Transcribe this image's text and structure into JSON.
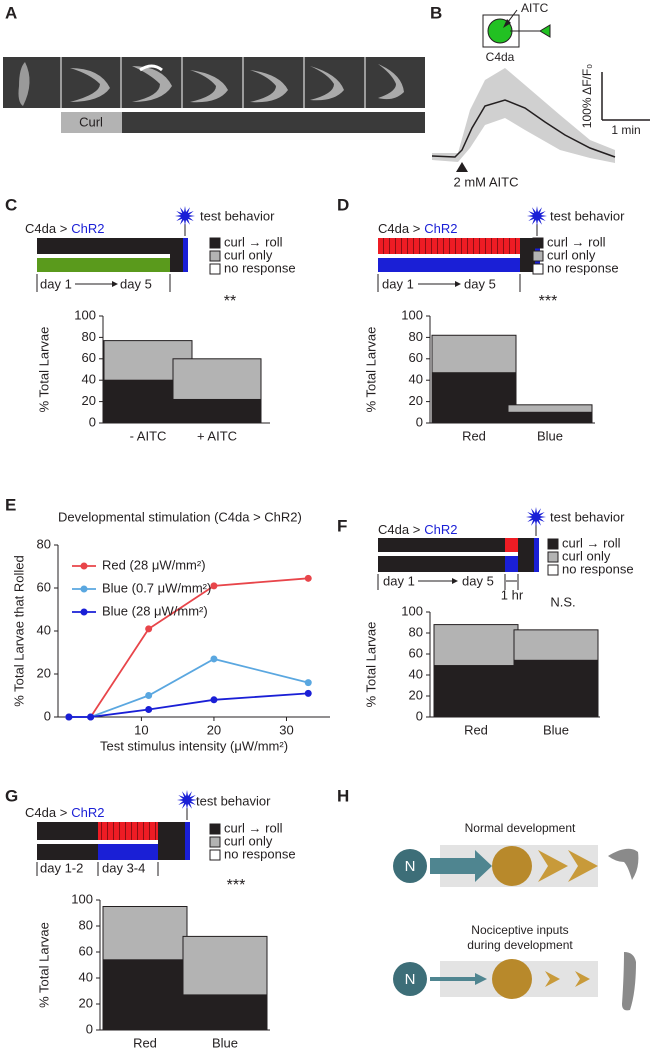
{
  "panels": {
    "A": {
      "label": "A",
      "curl": "Curl"
    },
    "B": {
      "label": "B",
      "stimulus": "AITC",
      "neuron": "C4da",
      "scale_y": "100% ΔF/F₀",
      "scale_x": "1 min",
      "annotation": "2 mM AITC"
    },
    "C": {
      "label": "C",
      "driver": "C4da >",
      "effector": "ChR2",
      "test": "test behavior",
      "no_response": "no response",
      "day_start": "day 1",
      "day_end": "day 5",
      "significance": "**"
    },
    "D": {
      "label": "D",
      "driver": "C4da >",
      "effector": "ChR2",
      "test": "test behavior",
      "no_response": "no response",
      "day_start": "day 1",
      "day_end": "day 5",
      "significance": "***"
    },
    "E": {
      "label": "E"
    },
    "F": {
      "label": "F",
      "driver": "C4da >",
      "effector": "ChR2",
      "test": "test behavior",
      "no_response": "no response",
      "day_start": "day 1",
      "day_end": "day 5",
      "interval": "1 hr",
      "significance": "N.S."
    },
    "G": {
      "label": "G",
      "driver": "C4da >",
      "effector": "ChR2",
      "test": "test behavior",
      "no_response": "no response",
      "day_a": "day 1-2",
      "day_b": "day 3-4",
      "significance": "***"
    },
    "H": {
      "label": "H",
      "node": "N",
      "normal": "Normal development",
      "nociceptive_1": "Nociceptive inputs",
      "nociceptive_2": "during development",
      "node_2": "N"
    }
  },
  "chart_data": [
    {
      "type": "bar",
      "y_label": "% Total Larvae",
      "categories": [
        "- AITC",
        "+ AITC"
      ],
      "ylim": [
        0,
        100
      ],
      "yticks": [
        0,
        20,
        40,
        60,
        80,
        100
      ],
      "series": [
        {
          "name": "curl → roll",
          "color": "#231f20",
          "values": [
            40,
            22
          ]
        },
        {
          "name": "curl only",
          "color": "#b3b3b3",
          "values": [
            37,
            38
          ]
        }
      ]
    },
    {
      "type": "bar",
      "y_label": "% Total Larvae",
      "categories": [
        "Red",
        "Blue"
      ],
      "ylim": [
        0,
        100
      ],
      "yticks": [
        0,
        20,
        40,
        60,
        80,
        100
      ],
      "series": [
        {
          "name": "curl → roll",
          "color": "#231f20",
          "values": [
            47,
            10
          ]
        },
        {
          "name": "curl only",
          "color": "#b3b3b3",
          "values": [
            35,
            7
          ]
        }
      ]
    },
    {
      "type": "line",
      "title": "Developmental stimulation (C4da > ChR2)",
      "x_label": "Test stimulus intensity (μW/mm²)",
      "y_label": "% Total Larvae that Rolled",
      "xlim": [
        -1.5,
        36
      ],
      "ylim": [
        0,
        80
      ],
      "xticks": [
        10,
        20,
        30
      ],
      "yticks": [
        0,
        20,
        40,
        60,
        80
      ],
      "x": [
        0,
        3,
        11,
        20,
        33
      ],
      "series": [
        {
          "name": "Red (28 μW/mm²)",
          "color": "#e8454a",
          "values": [
            0,
            0,
            41,
            61,
            64.5
          ]
        },
        {
          "name": "Blue (0.7 μW/mm²)",
          "color": "#5aa7e0",
          "values": [
            0,
            0,
            10,
            27,
            16
          ]
        },
        {
          "name": "Blue (28 μW/mm²)",
          "color": "#1a1fd6",
          "values": [
            0,
            0,
            3.5,
            8,
            11
          ]
        }
      ]
    },
    {
      "type": "bar",
      "y_label": "% Total Larvae",
      "categories": [
        "Red",
        "Blue"
      ],
      "ylim": [
        0,
        100
      ],
      "yticks": [
        0,
        20,
        40,
        60,
        80,
        100
      ],
      "series": [
        {
          "name": "curl → roll",
          "color": "#231f20",
          "values": [
            49,
            54
          ]
        },
        {
          "name": "curl only",
          "color": "#b3b3b3",
          "values": [
            39,
            29
          ]
        }
      ]
    },
    {
      "type": "bar",
      "y_label": "% Total Larvae",
      "categories": [
        "Red",
        "Blue"
      ],
      "ylim": [
        0,
        100
      ],
      "yticks": [
        0,
        20,
        40,
        60,
        80,
        100
      ],
      "series": [
        {
          "name": "curl → roll",
          "color": "#231f20",
          "values": [
            54,
            27
          ]
        },
        {
          "name": "curl only",
          "color": "#b3b3b3",
          "values": [
            41,
            45
          ]
        }
      ]
    }
  ]
}
